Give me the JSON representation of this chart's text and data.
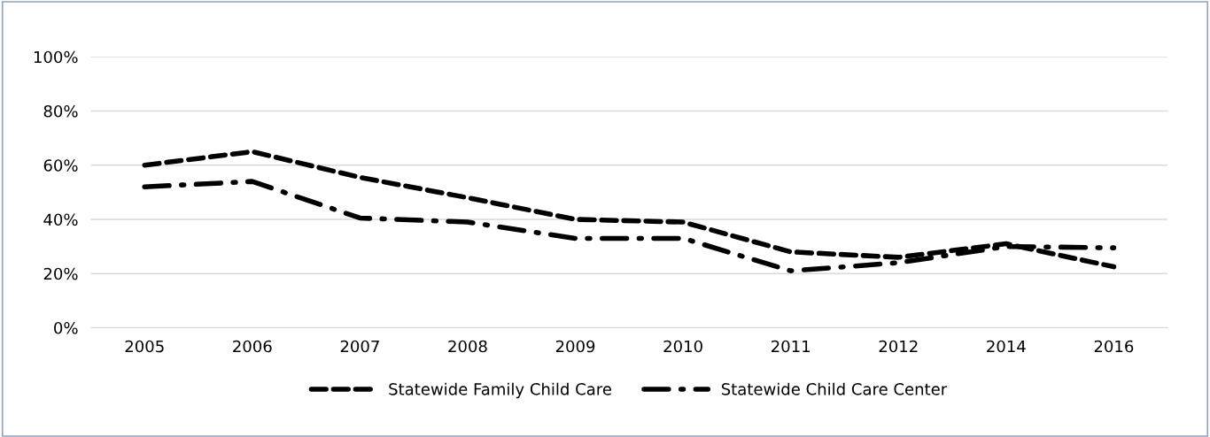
{
  "chart_data": {
    "type": "line",
    "categories": [
      "2005",
      "2006",
      "2007",
      "2008",
      "2009",
      "2010",
      "2011",
      "2012",
      "2014",
      "2016"
    ],
    "series": [
      {
        "name": "Statewide Family Child Care",
        "color": "#000000",
        "line_style": "dashed",
        "values": [
          60,
          65,
          55.5,
          48,
          40,
          39,
          28,
          26,
          31,
          22.5
        ]
      },
      {
        "name": "Statewide Child Care Center",
        "color": "#000000",
        "line_style": "dashdot",
        "values": [
          52,
          54,
          40.5,
          39,
          33,
          33,
          21,
          24,
          30,
          29.5
        ]
      }
    ],
    "ylim": [
      0,
      100
    ],
    "yticks": [
      {
        "value": 0,
        "label": "0%"
      },
      {
        "value": 20,
        "label": "20%"
      },
      {
        "value": 40,
        "label": "40%"
      },
      {
        "value": 60,
        "label": "60%"
      },
      {
        "value": 80,
        "label": "80%"
      },
      {
        "value": 100,
        "label": "100%"
      }
    ],
    "grid": "y",
    "legend": "bottom",
    "marker": "none"
  }
}
